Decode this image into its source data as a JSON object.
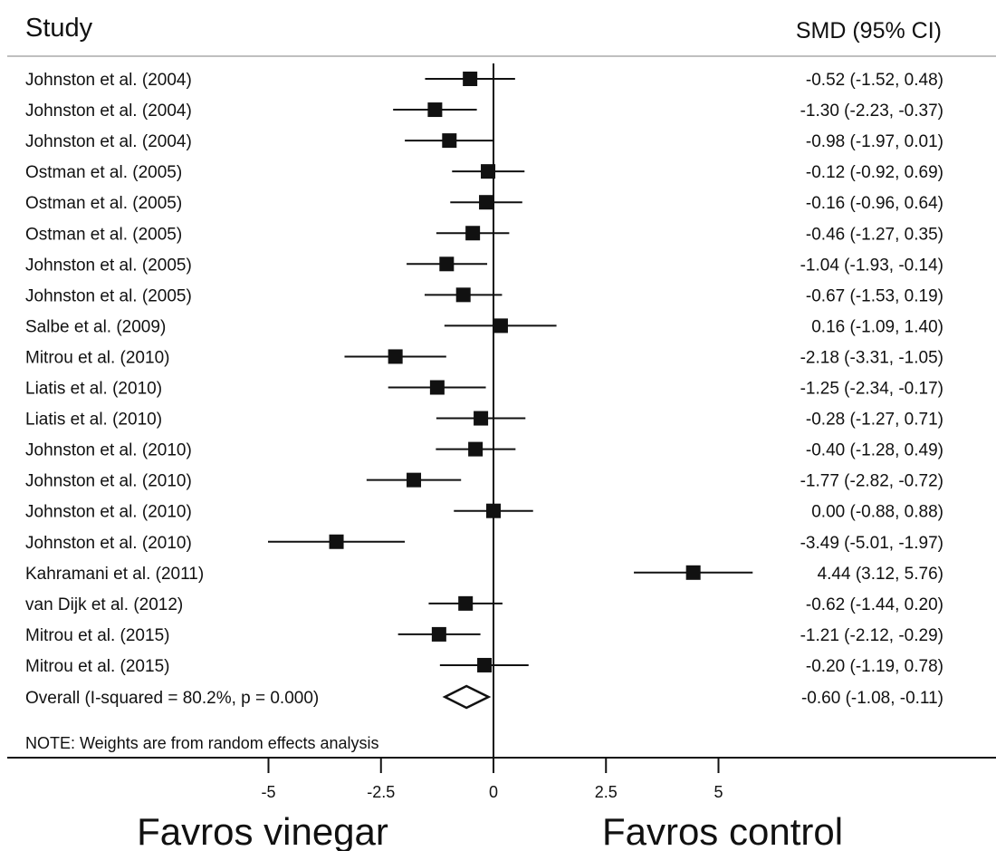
{
  "chart_data": {
    "type": "forest",
    "header_left": "Study",
    "header_right": "SMD (95% CI)",
    "xlim": [
      -5,
      5
    ],
    "xticks": [
      -5,
      -2.5,
      0,
      2.5,
      5
    ],
    "xtick_labels": [
      "-5",
      "-2.5",
      "0",
      "2.5",
      "5"
    ],
    "reference_line": 0,
    "label_left": "Favros vinegar",
    "label_right": "Favros control",
    "note": "NOTE: Weights are from random effects analysis",
    "studies": [
      {
        "label": "Johnston et al. (2004)",
        "smd": -0.52,
        "lo": -1.52,
        "hi": 0.48,
        "ci_text": "-0.52 (-1.52, 0.48)"
      },
      {
        "label": "Johnston et al. (2004)",
        "smd": -1.3,
        "lo": -2.23,
        "hi": -0.37,
        "ci_text": "-1.30 (-2.23, -0.37)"
      },
      {
        "label": "Johnston et al. (2004)",
        "smd": -0.98,
        "lo": -1.97,
        "hi": 0.01,
        "ci_text": "-0.98 (-1.97, 0.01)"
      },
      {
        "label": "Ostman et al. (2005)",
        "smd": -0.12,
        "lo": -0.92,
        "hi": 0.69,
        "ci_text": "-0.12 (-0.92, 0.69)"
      },
      {
        "label": "Ostman et al. (2005)",
        "smd": -0.16,
        "lo": -0.96,
        "hi": 0.64,
        "ci_text": "-0.16 (-0.96, 0.64)"
      },
      {
        "label": "Ostman et al. (2005)",
        "smd": -0.46,
        "lo": -1.27,
        "hi": 0.35,
        "ci_text": "-0.46 (-1.27, 0.35)"
      },
      {
        "label": "Johnston et al. (2005)",
        "smd": -1.04,
        "lo": -1.93,
        "hi": -0.14,
        "ci_text": "-1.04 (-1.93, -0.14)"
      },
      {
        "label": "Johnston et al. (2005)",
        "smd": -0.67,
        "lo": -1.53,
        "hi": 0.19,
        "ci_text": "-0.67 (-1.53, 0.19)"
      },
      {
        "label": "Salbe et al. (2009)",
        "smd": 0.16,
        "lo": -1.09,
        "hi": 1.4,
        "ci_text": "0.16 (-1.09, 1.40)"
      },
      {
        "label": "Mitrou et al. (2010)",
        "smd": -2.18,
        "lo": -3.31,
        "hi": -1.05,
        "ci_text": "-2.18 (-3.31, -1.05)"
      },
      {
        "label": "Liatis et al. (2010)",
        "smd": -1.25,
        "lo": -2.34,
        "hi": -0.17,
        "ci_text": "-1.25 (-2.34, -0.17)"
      },
      {
        "label": "Liatis et al. (2010)",
        "smd": -0.28,
        "lo": -1.27,
        "hi": 0.71,
        "ci_text": "-0.28 (-1.27, 0.71)"
      },
      {
        "label": "Johnston et al. (2010)",
        "smd": -0.4,
        "lo": -1.28,
        "hi": 0.49,
        "ci_text": "-0.40 (-1.28, 0.49)"
      },
      {
        "label": "Johnston et al. (2010)",
        "smd": -1.77,
        "lo": -2.82,
        "hi": -0.72,
        "ci_text": "-1.77 (-2.82, -0.72)"
      },
      {
        "label": "Johnston et al. (2010)",
        "smd": 0.0,
        "lo": -0.88,
        "hi": 0.88,
        "ci_text": "0.00 (-0.88, 0.88)"
      },
      {
        "label": "Johnston et al. (2010)",
        "smd": -3.49,
        "lo": -5.01,
        "hi": -1.97,
        "ci_text": "-3.49 (-5.01, -1.97)"
      },
      {
        "label": "Kahramani et al. (2011)",
        "smd": 4.44,
        "lo": 3.12,
        "hi": 5.76,
        "ci_text": "4.44 (3.12, 5.76)"
      },
      {
        "label": "van Dijk et al. (2012)",
        "smd": -0.62,
        "lo": -1.44,
        "hi": 0.2,
        "ci_text": "-0.62 (-1.44, 0.20)"
      },
      {
        "label": "Mitrou et al. (2015)",
        "smd": -1.21,
        "lo": -2.12,
        "hi": -0.29,
        "ci_text": "-1.21 (-2.12, -0.29)"
      },
      {
        "label": "Mitrou et al. (2015)",
        "smd": -0.2,
        "lo": -1.19,
        "hi": 0.78,
        "ci_text": "-0.20 (-1.19, 0.78)"
      }
    ],
    "overall": {
      "label": "Overall  (I-squared = 80.2%, p = 0.000)",
      "smd": -0.6,
      "lo": -1.08,
      "hi": -0.11,
      "ci_text": "-0.60 (-1.08, -0.11)"
    }
  }
}
